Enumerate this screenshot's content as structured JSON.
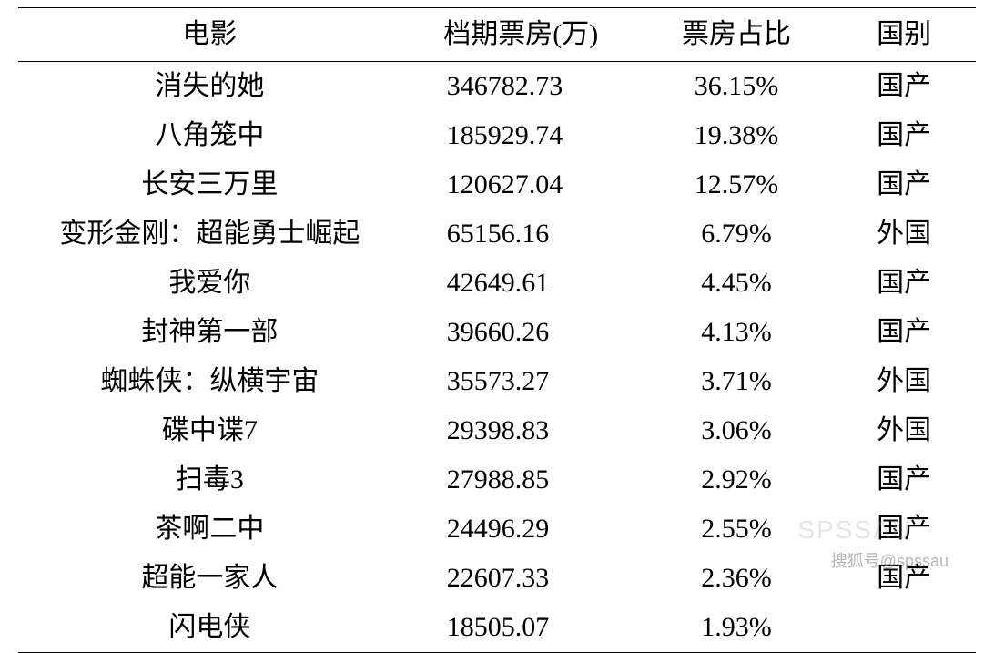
{
  "table": {
    "type": "table",
    "background_color": "#ffffff",
    "text_color": "#000000",
    "font_family": "SimSun",
    "header_fontsize": 30,
    "cell_fontsize": 30,
    "border_color": "#000000",
    "columns": [
      {
        "key": "movie",
        "label": "电影",
        "align": "center",
        "width_pct": 40
      },
      {
        "key": "boxoffice",
        "label": "档期票房(万)",
        "align": "left",
        "width_pct": 25
      },
      {
        "key": "percent",
        "label": "票房占比",
        "align": "center",
        "width_pct": 20
      },
      {
        "key": "country",
        "label": "国别",
        "align": "center",
        "width_pct": 15
      }
    ],
    "rows": [
      {
        "movie": "消失的她",
        "boxoffice": "346782.73",
        "percent": "36.15%",
        "country": "国产"
      },
      {
        "movie": "八角笼中",
        "boxoffice": "185929.74",
        "percent": "19.38%",
        "country": "国产"
      },
      {
        "movie": "长安三万里",
        "boxoffice": "120627.04",
        "percent": "12.57%",
        "country": "国产"
      },
      {
        "movie": "变形金刚：超能勇士崛起",
        "boxoffice": "65156.16",
        "percent": "6.79%",
        "country": "外国"
      },
      {
        "movie": "我爱你",
        "boxoffice": "42649.61",
        "percent": "4.45%",
        "country": "国产"
      },
      {
        "movie": "封神第一部",
        "boxoffice": "39660.26",
        "percent": "4.13%",
        "country": "国产"
      },
      {
        "movie": "蜘蛛侠：纵横宇宙",
        "boxoffice": "35573.27",
        "percent": "3.71%",
        "country": "外国"
      },
      {
        "movie": "碟中谍7",
        "boxoffice": "29398.83",
        "percent": "3.06%",
        "country": "外国"
      },
      {
        "movie": "扫毒3",
        "boxoffice": "27988.85",
        "percent": "2.92%",
        "country": "国产"
      },
      {
        "movie": "茶啊二中",
        "boxoffice": "24496.29",
        "percent": "2.55%",
        "country": "国产"
      },
      {
        "movie": "超能一家人",
        "boxoffice": "22607.33",
        "percent": "2.36%",
        "country": "国产"
      },
      {
        "movie": "闪电侠",
        "boxoffice": "18505.07",
        "percent": "1.93%",
        "country": ""
      }
    ]
  },
  "watermark": {
    "faint_text": "SPSSAU",
    "text": "搜狐号@spssau",
    "color": "rgba(120,120,120,0.55)",
    "faint_color": "rgba(150,150,150,0.25)"
  }
}
